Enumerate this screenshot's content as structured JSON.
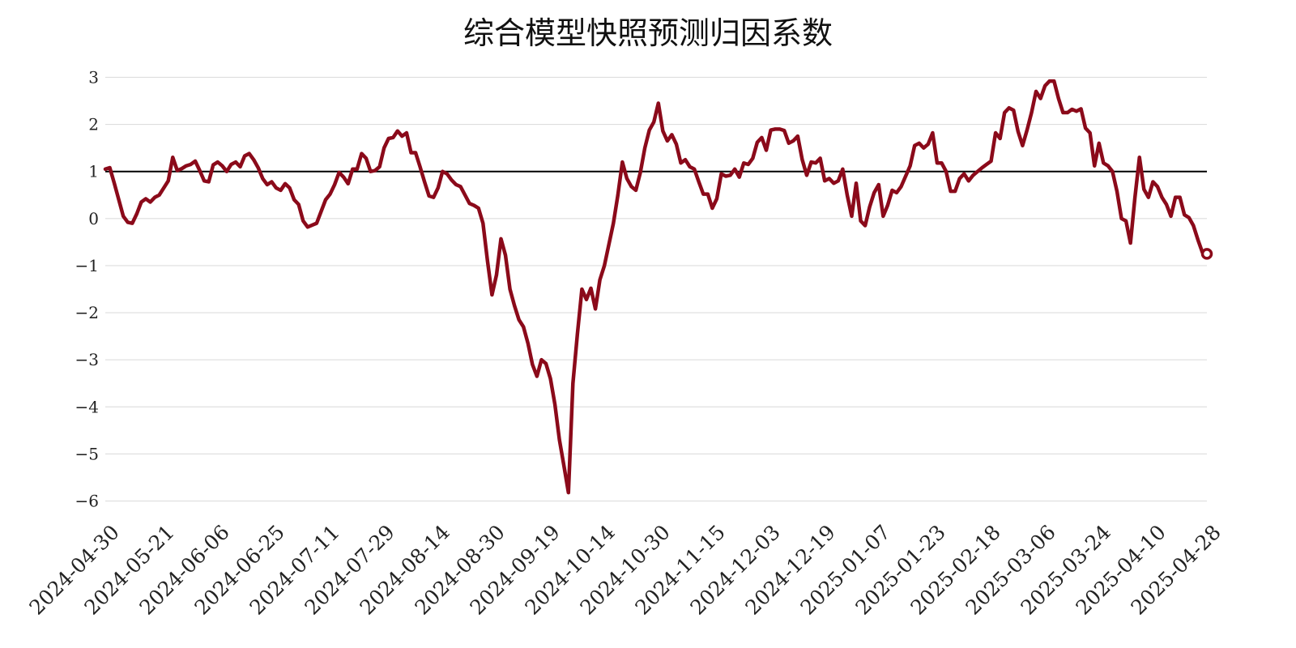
{
  "chart_data": {
    "type": "line",
    "title": "综合模型快照预测归因系数",
    "xlabel": "",
    "ylabel": "",
    "ylim": [
      -6.3,
      3.3
    ],
    "yticks": [
      3,
      2,
      1,
      0,
      -1,
      -2,
      -3,
      -4,
      -5,
      -6
    ],
    "ytick_labels": [
      "3",
      "2",
      "1",
      "0",
      "−1",
      "−2",
      "−3",
      "−4",
      "−5",
      "−6"
    ],
    "reference_line": 1,
    "grid": true,
    "xtick_labels": [
      "2024-04-30",
      "2024-05-21",
      "2024-06-06",
      "2024-06-25",
      "2024-07-11",
      "2024-07-29",
      "2024-08-14",
      "2024-08-30",
      "2024-09-19",
      "2024-10-14",
      "2024-10-30",
      "2024-11-15",
      "2024-12-03",
      "2024-12-19",
      "2025-01-07",
      "2025-01-23",
      "2025-02-18",
      "2025-03-06",
      "2025-03-24",
      "2025-04-10",
      "2025-04-28"
    ],
    "colors": {
      "line": "#8b0a1a",
      "reference": "#000000",
      "grid": "#dddddd"
    },
    "series": [
      {
        "values": [
          1.05,
          1.08,
          0.75,
          0.4,
          0.05,
          -0.08,
          -0.1,
          0.1,
          0.35,
          0.42,
          0.35,
          0.45,
          0.5,
          0.65,
          0.8,
          1.3,
          1.02,
          1.06,
          1.12,
          1.15,
          1.22,
          1.02,
          0.8,
          0.78,
          1.14,
          1.2,
          1.12,
          1.0,
          1.15,
          1.2,
          1.1,
          1.33,
          1.38,
          1.25,
          1.08,
          0.85,
          0.72,
          0.78,
          0.65,
          0.6,
          0.74,
          0.65,
          0.4,
          0.3,
          -0.05,
          -0.18,
          -0.14,
          -0.1,
          0.15,
          0.4,
          0.52,
          0.72,
          0.98,
          0.88,
          0.74,
          1.05,
          1.05,
          1.38,
          1.28,
          1.0,
          1.02,
          1.1,
          1.5,
          1.7,
          1.72,
          1.86,
          1.75,
          1.82,
          1.4,
          1.4,
          1.1,
          0.78,
          0.48,
          0.45,
          0.65,
          1.0,
          0.95,
          0.82,
          0.72,
          0.68,
          0.5,
          0.32,
          0.28,
          0.22,
          -0.1,
          -0.9,
          -1.62,
          -1.2,
          -0.43,
          -0.78,
          -1.5,
          -1.85,
          -2.15,
          -2.3,
          -2.65,
          -3.1,
          -3.35,
          -3.0,
          -3.08,
          -3.4,
          -3.95,
          -4.7,
          -5.25,
          -5.82,
          -3.5,
          -2.45,
          -1.5,
          -1.72,
          -1.48,
          -1.92,
          -1.3,
          -1.0,
          -0.55,
          -0.1,
          0.5,
          1.2,
          0.85,
          0.68,
          0.6,
          0.98,
          1.5,
          1.88,
          2.05,
          2.45,
          1.86,
          1.65,
          1.78,
          1.58,
          1.18,
          1.25,
          1.1,
          1.05,
          0.78,
          0.52,
          0.52,
          0.22,
          0.42,
          0.95,
          0.9,
          0.92,
          1.05,
          0.88,
          1.18,
          1.15,
          1.28,
          1.62,
          1.72,
          1.45,
          1.88,
          1.9,
          1.9,
          1.87,
          1.6,
          1.65,
          1.75,
          1.25,
          0.92,
          1.2,
          1.18,
          1.28,
          0.8,
          0.85,
          0.75,
          0.8,
          1.05,
          0.5,
          0.05,
          0.75,
          -0.05,
          -0.15,
          0.25,
          0.55,
          0.72,
          0.05,
          0.28,
          0.6,
          0.55,
          0.68,
          0.9,
          1.12,
          1.55,
          1.6,
          1.5,
          1.58,
          1.82,
          1.18,
          1.18,
          1.0,
          0.58,
          0.58,
          0.85,
          0.95,
          0.8,
          0.92,
          1.0,
          1.08,
          1.15,
          1.22,
          1.82,
          1.7,
          2.25,
          2.35,
          2.3,
          1.85,
          1.55,
          1.88,
          2.25,
          2.7,
          2.55,
          2.82,
          2.92,
          2.92,
          2.55,
          2.25,
          2.25,
          2.32,
          2.28,
          2.33,
          1.92,
          1.82,
          1.12,
          1.6,
          1.18,
          1.12,
          1.0,
          0.58,
          0.0,
          -0.05,
          -0.52,
          0.45,
          1.3,
          0.62,
          0.45,
          0.78,
          0.68,
          0.45,
          0.3,
          0.05,
          0.45,
          0.45,
          0.08,
          0.02,
          -0.15,
          -0.45,
          -0.72,
          -0.75
        ]
      }
    ]
  }
}
